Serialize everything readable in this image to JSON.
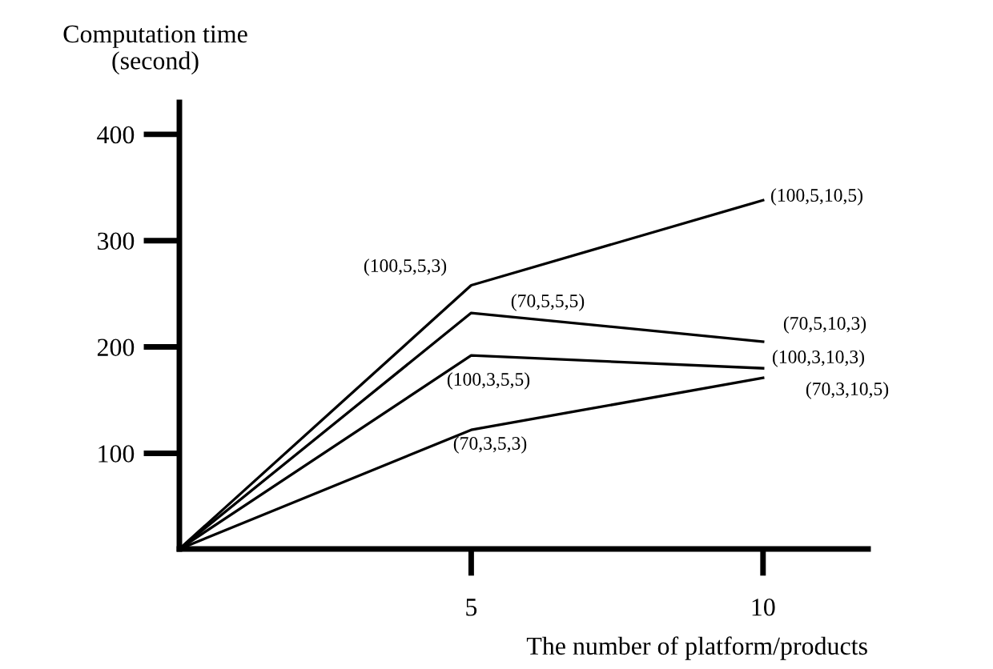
{
  "chart_data": {
    "type": "line",
    "xlabel": "The number of platform/products",
    "ylabel": "Computation time\n(second)",
    "x": [
      0,
      5,
      10
    ],
    "xlim": [
      0,
      11.8
    ],
    "xticks": [
      5,
      10
    ],
    "ylim": [
      10,
      430
    ],
    "yticks": [
      100,
      200,
      300,
      400
    ],
    "grid": false,
    "legend": false,
    "marker": "none",
    "line_style": "solid",
    "series": [
      {
        "color": "#000000",
        "values": [
          10,
          258,
          338
        ]
      },
      {
        "color": "#000000",
        "values": [
          10,
          232,
          205
        ]
      },
      {
        "color": "#000000",
        "values": [
          10,
          192,
          180
        ]
      },
      {
        "color": "#000000",
        "values": [
          10,
          122,
          171
        ]
      }
    ],
    "annotations": [
      "(100,5,5,3)",
      "(70,5,5,5)",
      "(100,3,5,5)",
      "(70,3,5,3)",
      "(100,5,10,5)",
      "(70,5,10,3)",
      "(100,3,10,3)",
      "(70,3,10,5)"
    ]
  }
}
